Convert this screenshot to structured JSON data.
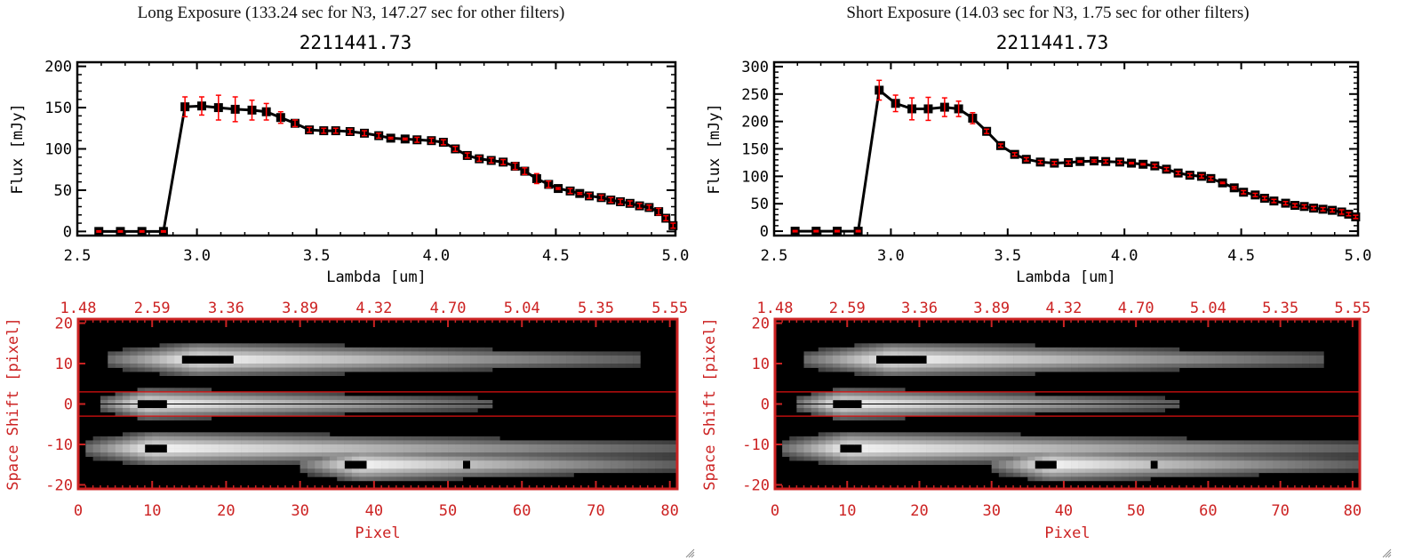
{
  "chart_data": [
    {
      "type": "line",
      "panel": "long",
      "exposure_title": "Long Exposure (133.24 sec for N3, 147.27 sec for other filters)",
      "title": "2211441.73",
      "xlabel": "Lambda [um]",
      "ylabel": "Flux [mJy]",
      "xlim": [
        2.5,
        5.0
      ],
      "ylim": [
        -5,
        205
      ],
      "xticks": [
        "2.5",
        "3.0",
        "3.5",
        "4.0",
        "4.5",
        "5.0"
      ],
      "xtick_values": [
        2.5,
        3.0,
        3.5,
        4.0,
        4.5,
        5.0
      ],
      "yticks": [
        "0",
        "50",
        "100",
        "150",
        "200"
      ],
      "ytick_values": [
        0,
        50,
        100,
        150,
        200
      ],
      "series": [
        {
          "name": "flux",
          "x": [
            2.59,
            2.68,
            2.77,
            2.86,
            2.95,
            3.02,
            3.09,
            3.16,
            3.23,
            3.29,
            3.35,
            3.41,
            3.47,
            3.53,
            3.58,
            3.64,
            3.7,
            3.76,
            3.81,
            3.87,
            3.92,
            3.98,
            4.03,
            4.08,
            4.13,
            4.18,
            4.23,
            4.28,
            4.33,
            4.37,
            4.42,
            4.47,
            4.51,
            4.56,
            4.6,
            4.64,
            4.69,
            4.73,
            4.77,
            4.81,
            4.85,
            4.89,
            4.93,
            4.96,
            4.99
          ],
          "y": [
            0,
            0,
            0,
            0,
            151,
            152,
            150,
            148,
            147,
            145,
            138,
            131,
            123,
            122,
            122,
            121,
            119,
            116,
            113,
            112,
            111,
            110,
            108,
            100,
            92,
            88,
            86,
            84,
            79,
            73,
            64,
            57,
            52,
            49,
            46,
            43,
            41,
            38,
            36,
            34,
            31,
            29,
            24,
            16,
            7
          ],
          "err": [
            0,
            0,
            0,
            0,
            12,
            11,
            15,
            15,
            12,
            10,
            7,
            4,
            3,
            3,
            3,
            3,
            3,
            3,
            1,
            1,
            3,
            3,
            3,
            3,
            3,
            3,
            3,
            3,
            4,
            4,
            6,
            4,
            1,
            3,
            1,
            3,
            3,
            3,
            3,
            3,
            3,
            3,
            4,
            3,
            3
          ]
        }
      ]
    },
    {
      "type": "line",
      "panel": "short",
      "exposure_title": "Short Exposure (14.03 sec for N3, 1.75 sec for other filters)",
      "title": "2211441.73",
      "xlabel": "Lambda [um]",
      "ylabel": "Flux [mJy]",
      "xlim": [
        2.5,
        5.0
      ],
      "ylim": [
        -8,
        308
      ],
      "xticks": [
        "2.5",
        "3.0",
        "3.5",
        "4.0",
        "4.5",
        "5.0"
      ],
      "xtick_values": [
        2.5,
        3.0,
        3.5,
        4.0,
        4.5,
        5.0
      ],
      "yticks": [
        "0",
        "50",
        "100",
        "150",
        "200",
        "250",
        "300"
      ],
      "ytick_values": [
        0,
        50,
        100,
        150,
        200,
        250,
        300
      ],
      "series": [
        {
          "name": "flux",
          "x": [
            2.59,
            2.68,
            2.77,
            2.86,
            2.95,
            3.02,
            3.09,
            3.16,
            3.23,
            3.29,
            3.35,
            3.41,
            3.47,
            3.53,
            3.58,
            3.64,
            3.7,
            3.76,
            3.81,
            3.87,
            3.92,
            3.98,
            4.03,
            4.08,
            4.13,
            4.18,
            4.23,
            4.28,
            4.33,
            4.37,
            4.42,
            4.47,
            4.51,
            4.56,
            4.6,
            4.64,
            4.69,
            4.73,
            4.77,
            4.81,
            4.85,
            4.89,
            4.93,
            4.96,
            4.99
          ],
          "y": [
            0,
            0,
            0,
            0,
            257,
            233,
            223,
            223,
            226,
            223,
            206,
            182,
            156,
            140,
            131,
            126,
            124,
            125,
            127,
            128,
            127,
            126,
            124,
            122,
            119,
            113,
            106,
            102,
            100,
            96,
            88,
            79,
            71,
            66,
            60,
            55,
            51,
            47,
            45,
            42,
            40,
            38,
            35,
            31,
            26
          ],
          "err": [
            0,
            0,
            0,
            0,
            18,
            15,
            20,
            21,
            17,
            14,
            10,
            4,
            3,
            3,
            3,
            3,
            3,
            3,
            1,
            2,
            3,
            3,
            1,
            1,
            3,
            3,
            3,
            3,
            3,
            3,
            1,
            2,
            3,
            3,
            3,
            3,
            3,
            3,
            3,
            3,
            3,
            3,
            4,
            3,
            3
          ]
        }
      ]
    },
    {
      "type": "heatmap",
      "panel": "long-image",
      "xlabel": "Pixel",
      "ylabel": "Space Shift [pixel]",
      "xlim": [
        0,
        81
      ],
      "ylim": [
        -21,
        21
      ],
      "xticks": [
        "0",
        "10",
        "20",
        "30",
        "40",
        "50",
        "60",
        "70",
        "80"
      ],
      "xtick_values": [
        0,
        10,
        20,
        30,
        40,
        50,
        60,
        70,
        80
      ],
      "yticks": [
        "20",
        "10",
        "0",
        "-10",
        "-20"
      ],
      "ytick_values": [
        20,
        10,
        0,
        -10,
        -20
      ],
      "top_axis_ticks": [
        "1.48",
        "2.59",
        "3.36",
        "3.89",
        "4.32",
        "4.70",
        "5.04",
        "5.35",
        "5.55"
      ],
      "aperture_lines": [
        3,
        -3
      ],
      "sources": [
        {
          "center_y": 11,
          "x_start": 4,
          "x_peak": 16,
          "x_end": 76,
          "peak_halfwidth": 4,
          "saturated": [
            [
              14,
              18
            ],
            [
              18,
              21
            ]
          ]
        },
        {
          "center_y": 0,
          "x_start": 3,
          "x_peak": 9,
          "x_end": 56,
          "peak_halfwidth": 3.5,
          "saturated": [
            [
              8,
              12
            ]
          ]
        },
        {
          "center_y": -11,
          "x_start": 1,
          "x_peak": 10,
          "x_end": 81,
          "peak_halfwidth": 4,
          "saturated": [
            [
              9,
              12
            ]
          ]
        },
        {
          "center_y": -15,
          "x_start": 30,
          "x_peak": 38,
          "x_end": 81,
          "peak_halfwidth": 4,
          "saturated": [
            [
              36,
              39
            ],
            [
              52,
              53
            ]
          ]
        }
      ]
    },
    {
      "type": "heatmap",
      "panel": "short-image",
      "xlabel": "Pixel",
      "ylabel": "Space Shift [pixel]",
      "xlim": [
        0,
        81
      ],
      "ylim": [
        -21,
        21
      ],
      "xticks": [
        "0",
        "10",
        "20",
        "30",
        "40",
        "50",
        "60",
        "70",
        "80"
      ],
      "xtick_values": [
        0,
        10,
        20,
        30,
        40,
        50,
        60,
        70,
        80
      ],
      "yticks": [
        "20",
        "10",
        "0",
        "-10",
        "-20"
      ],
      "ytick_values": [
        20,
        10,
        0,
        -10,
        -20
      ],
      "top_axis_ticks": [
        "1.48",
        "2.59",
        "3.36",
        "3.89",
        "4.32",
        "4.70",
        "5.04",
        "5.35",
        "5.55"
      ],
      "aperture_lines": [
        3,
        -3
      ]
    }
  ],
  "colors": {
    "axis_red": "#cc2222",
    "error_red": "#ff0000",
    "line_black": "#000000"
  }
}
